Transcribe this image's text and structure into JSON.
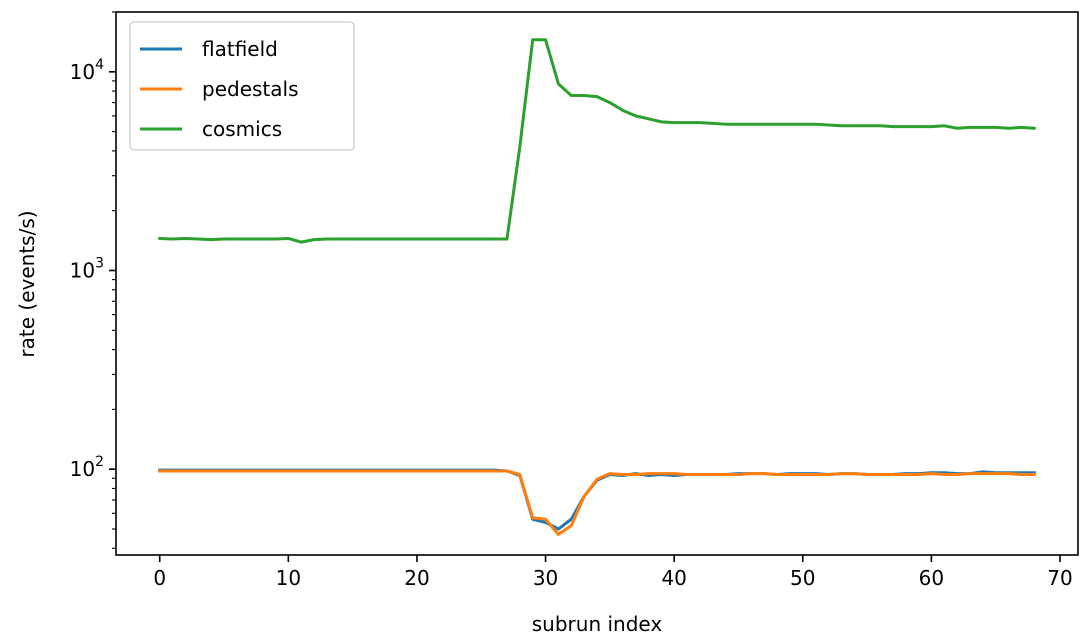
{
  "chart_data": {
    "type": "line",
    "title": "",
    "xlabel": "subrun index",
    "ylabel": "rate (events/s)",
    "xlim": [
      -3.4,
      71.4
    ],
    "ylim": [
      37,
      20000
    ],
    "yscale": "log",
    "xticks": [
      0,
      10,
      20,
      30,
      40,
      50,
      60,
      70
    ],
    "xtick_labels": [
      "0",
      "10",
      "20",
      "30",
      "40",
      "50",
      "60",
      "70"
    ],
    "yticks_major": [
      100,
      1000,
      10000
    ],
    "ytick_labels": [
      {
        "base": "10",
        "exp": "2"
      },
      {
        "base": "10",
        "exp": "3"
      },
      {
        "base": "10",
        "exp": "4"
      }
    ],
    "grid": false,
    "legend": "top-left",
    "series": [
      {
        "name": "flatfield",
        "color": "#1f77b4",
        "x": [
          0,
          1,
          2,
          3,
          4,
          5,
          6,
          7,
          8,
          9,
          10,
          11,
          12,
          13,
          14,
          15,
          16,
          17,
          18,
          19,
          20,
          21,
          22,
          23,
          24,
          25,
          26,
          27,
          28,
          29,
          30,
          31,
          32,
          33,
          34,
          35,
          36,
          37,
          38,
          39,
          40,
          41,
          42,
          43,
          44,
          45,
          46,
          47,
          48,
          49,
          50,
          51,
          52,
          53,
          54,
          55,
          56,
          57,
          58,
          59,
          60,
          61,
          62,
          63,
          64,
          65,
          66,
          67,
          68
        ],
        "y": [
          99,
          99,
          99,
          99,
          99,
          99,
          99,
          99,
          99,
          99,
          99,
          99,
          99,
          99,
          99,
          99,
          99,
          99,
          99,
          99,
          99,
          99,
          99,
          99,
          99,
          99,
          99,
          98,
          93,
          56,
          54,
          50,
          56,
          73,
          88,
          94,
          93,
          95,
          93,
          94,
          93,
          94,
          94,
          94,
          94,
          95,
          95,
          95,
          94,
          95,
          95,
          95,
          94,
          95,
          95,
          94,
          94,
          94,
          95,
          95,
          96,
          96,
          95,
          95,
          97,
          96,
          96,
          96,
          96
        ]
      },
      {
        "name": "pedestals",
        "color": "#ff7f0e",
        "x": [
          0,
          1,
          2,
          3,
          4,
          5,
          6,
          7,
          8,
          9,
          10,
          11,
          12,
          13,
          14,
          15,
          16,
          17,
          18,
          19,
          20,
          21,
          22,
          23,
          24,
          25,
          26,
          27,
          28,
          29,
          30,
          31,
          32,
          33,
          34,
          35,
          36,
          37,
          38,
          39,
          40,
          41,
          42,
          43,
          44,
          45,
          46,
          47,
          48,
          49,
          50,
          51,
          52,
          53,
          54,
          55,
          56,
          57,
          58,
          59,
          60,
          61,
          62,
          63,
          64,
          65,
          66,
          67,
          68
        ],
        "y": [
          98,
          98,
          98,
          98,
          98,
          98,
          98,
          98,
          98,
          98,
          98,
          98,
          98,
          98,
          98,
          98,
          98,
          98,
          98,
          98,
          98,
          98,
          98,
          98,
          98,
          98,
          98,
          98,
          94,
          57,
          56,
          47,
          52,
          73,
          89,
          95,
          94,
          94,
          95,
          95,
          95,
          94,
          94,
          94,
          94,
          94,
          95,
          95,
          94,
          94,
          94,
          94,
          94,
          95,
          95,
          94,
          94,
          94,
          94,
          94,
          95,
          94,
          94,
          95,
          95,
          95,
          95,
          94,
          94
        ]
      },
      {
        "name": "cosmics",
        "color": "#2ca02c",
        "x": [
          0,
          1,
          2,
          3,
          4,
          5,
          6,
          7,
          8,
          9,
          10,
          11,
          12,
          13,
          14,
          15,
          16,
          17,
          18,
          19,
          20,
          21,
          22,
          23,
          24,
          25,
          26,
          27,
          28,
          29,
          30,
          31,
          32,
          33,
          34,
          35,
          36,
          37,
          38,
          39,
          40,
          41,
          42,
          43,
          44,
          45,
          46,
          47,
          48,
          49,
          50,
          51,
          52,
          53,
          54,
          55,
          56,
          57,
          58,
          59,
          60,
          61,
          62,
          63,
          64,
          65,
          66,
          67,
          68
        ],
        "y": [
          1450,
          1440,
          1450,
          1440,
          1430,
          1440,
          1440,
          1440,
          1440,
          1440,
          1450,
          1390,
          1430,
          1440,
          1440,
          1440,
          1440,
          1440,
          1440,
          1440,
          1440,
          1440,
          1440,
          1440,
          1440,
          1440,
          1440,
          1440,
          4200,
          14500,
          14500,
          8700,
          7600,
          7600,
          7500,
          7000,
          6400,
          6000,
          5800,
          5600,
          5550,
          5550,
          5550,
          5500,
          5450,
          5450,
          5450,
          5450,
          5450,
          5450,
          5450,
          5450,
          5400,
          5350,
          5350,
          5350,
          5350,
          5300,
          5300,
          5300,
          5300,
          5350,
          5200,
          5250,
          5250,
          5250,
          5200,
          5250,
          5200
        ]
      }
    ]
  }
}
